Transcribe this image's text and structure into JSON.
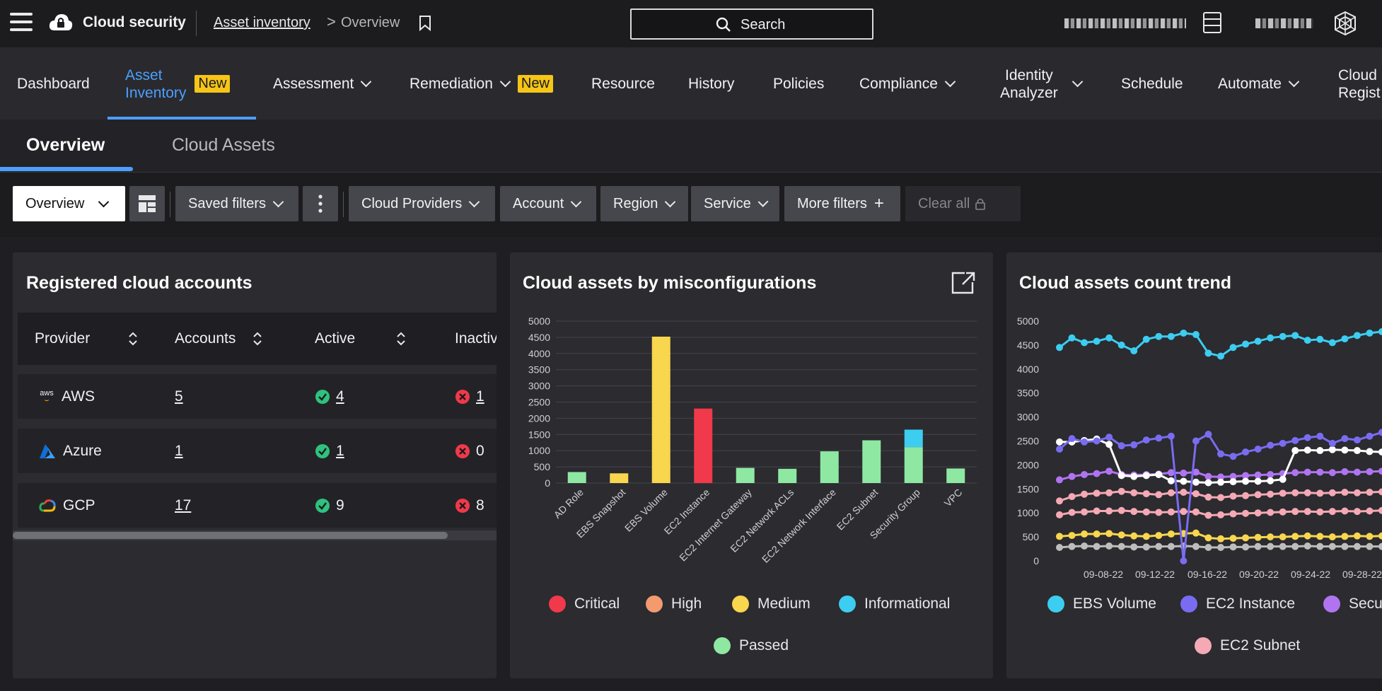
{
  "topbar": {
    "brand": "Cloud security",
    "breadcrumb_link": "Asset inventory",
    "breadcrumb_sep": ">",
    "breadcrumb_current": "Overview",
    "search_label": "Search"
  },
  "nav": {
    "dashboard": "Dashboard",
    "asset_inventory_l1": "Asset",
    "asset_inventory_l2": "Inventory",
    "new_badge": "New",
    "assessment": "Assessment",
    "remediation": "Remediation",
    "resource": "Resource",
    "history": "History",
    "policies": "Policies",
    "compliance": "Compliance",
    "identity_l1": "Identity",
    "identity_l2": "Analyzer",
    "schedule": "Schedule",
    "automate": "Automate",
    "cloud_reg_l1": "Cloud",
    "cloud_reg_l2": "Regist"
  },
  "subtabs": {
    "overview": "Overview",
    "cloud_assets": "Cloud Assets"
  },
  "filters": {
    "view": "Overview",
    "saved_filters": "Saved filters",
    "cloud_providers": "Cloud Providers",
    "account": "Account",
    "region": "Region",
    "service": "Service",
    "more_filters": "More filters",
    "clear_all": "Clear all"
  },
  "accounts_card": {
    "title": "Registered cloud accounts",
    "headers": {
      "provider": "Provider",
      "accounts": "Accounts",
      "active": "Active",
      "inactive": "Inactiv"
    },
    "rows": [
      {
        "provider": "AWS",
        "accounts": "5",
        "active": "4",
        "inactive": "1"
      },
      {
        "provider": "Azure",
        "accounts": "1",
        "active": "1",
        "inactive": "0"
      },
      {
        "provider": "GCP",
        "accounts": "17",
        "active": "9",
        "inactive": "8"
      }
    ],
    "aws_logo_text": "aws"
  },
  "colors": {
    "critical": "#f0394a",
    "high": "#f39a6e",
    "medium": "#f8d64e",
    "informational": "#3ccdf0",
    "passed": "#8ee8a2",
    "ebs_volume": "#3ccdf0",
    "ec2_instance": "#7a6cf0",
    "security_group": "#b074f0",
    "ec2_subnet": "#f4a9b4",
    "white_series": "#ffffff",
    "gray_series": "#bdbdbd",
    "yellow_series": "#f8d64e"
  },
  "misconfig_card": {
    "title": "Cloud assets by misconfigurations",
    "legend": [
      "Critical",
      "High",
      "Medium",
      "Informational",
      "Passed"
    ]
  },
  "trend_card": {
    "title": "Cloud assets count trend",
    "legend": [
      "EBS Volume",
      "EC2 Instance",
      "Secur",
      "EC2 Subnet"
    ]
  },
  "chart_data": [
    {
      "type": "bar",
      "title": "Cloud assets by misconfigurations",
      "categories": [
        "AD Role",
        "EBS Snapshot",
        "EBS Volume",
        "EC2 Instance",
        "EC2 Internet Gateway",
        "EC2 Network ACLs",
        "EC2 Network Interface",
        "EC2 Subnet",
        "Security Group",
        "VPC"
      ],
      "yticks": [
        0,
        500,
        1000,
        1500,
        2000,
        2500,
        3000,
        3500,
        4000,
        4500,
        5000
      ],
      "ylim": [
        0,
        5000
      ],
      "stacked": true,
      "series": [
        {
          "name": "Critical",
          "values": [
            0,
            0,
            0,
            2300,
            0,
            0,
            0,
            0,
            0,
            0
          ]
        },
        {
          "name": "High",
          "values": [
            0,
            0,
            0,
            0,
            0,
            0,
            0,
            0,
            0,
            0
          ]
        },
        {
          "name": "Medium",
          "values": [
            0,
            300,
            4520,
            0,
            0,
            0,
            0,
            0,
            0,
            0
          ]
        },
        {
          "name": "Informational",
          "values": [
            0,
            0,
            0,
            0,
            0,
            0,
            0,
            0,
            540,
            0
          ]
        },
        {
          "name": "Passed",
          "values": [
            340,
            0,
            0,
            0,
            470,
            440,
            980,
            1320,
            1110,
            450
          ]
        }
      ]
    },
    {
      "type": "line",
      "title": "Cloud assets count trend",
      "yticks": [
        0,
        500,
        1000,
        1500,
        2000,
        2500,
        3000,
        3500,
        4000,
        4500,
        5000
      ],
      "ylim": [
        0,
        5000
      ],
      "xticks": [
        "09-08-22",
        "09-12-22",
        "09-16-22",
        "09-20-22",
        "09-24-22",
        "09-28-22"
      ],
      "series": [
        {
          "name": "EBS Volume",
          "values": [
            4450,
            4650,
            4550,
            4580,
            4650,
            4500,
            4380,
            4620,
            4680,
            4680,
            4750,
            4720,
            4330,
            4270,
            4450,
            4520,
            4580,
            4650,
            4680,
            4700,
            4600,
            4620,
            4550,
            4630,
            4700,
            4750,
            4780
          ]
        },
        {
          "name": "EC2 Instance",
          "values": [
            2330,
            2550,
            2480,
            2500,
            2580,
            2400,
            2420,
            2520,
            2560,
            2600,
            0,
            2500,
            2640,
            2230,
            2180,
            2270,
            2330,
            2410,
            2450,
            2510,
            2570,
            2600,
            2450,
            2550,
            2520,
            2600,
            2680
          ]
        },
        {
          "name": "white",
          "values": [
            2480,
            2480,
            2510,
            2540,
            2430,
            1780,
            1760,
            1780,
            1800,
            1670,
            1660,
            1640,
            1630,
            1640,
            1650,
            1660,
            1660,
            1670,
            1700,
            2300,
            2310,
            2300,
            2320,
            2310,
            2300,
            2280,
            2270
          ]
        },
        {
          "name": "Security Group",
          "values": [
            1690,
            1760,
            1800,
            1820,
            1870,
            1800,
            1790,
            1800,
            1810,
            1840,
            1830,
            1850,
            1760,
            1750,
            1760,
            1780,
            1790,
            1800,
            1820,
            1840,
            1850,
            1850,
            1840,
            1860,
            1850,
            1860,
            1870
          ]
        },
        {
          "name": "EC2 Subnet",
          "values": [
            1250,
            1340,
            1390,
            1410,
            1420,
            1450,
            1420,
            1400,
            1380,
            1420,
            1430,
            1400,
            1330,
            1320,
            1350,
            1360,
            1380,
            1390,
            1410,
            1420,
            1420,
            1410,
            1420,
            1430,
            1420,
            1430,
            1440
          ]
        },
        {
          "name": "pink2",
          "values": [
            960,
            1010,
            1020,
            1040,
            1040,
            1050,
            1030,
            1020,
            1010,
            1020,
            1030,
            1020,
            950,
            960,
            980,
            990,
            1000,
            1010,
            1020,
            1030,
            1030,
            1020,
            1030,
            1040,
            1030,
            1040,
            1050
          ]
        },
        {
          "name": "yellow",
          "values": [
            510,
            530,
            560,
            560,
            570,
            540,
            520,
            510,
            530,
            560,
            570,
            580,
            480,
            460,
            470,
            480,
            490,
            500,
            500,
            510,
            520,
            510,
            500,
            510,
            520,
            510,
            520
          ]
        },
        {
          "name": "gray",
          "values": [
            280,
            300,
            310,
            300,
            310,
            300,
            290,
            290,
            300,
            300,
            310,
            300,
            280,
            280,
            290,
            290,
            300,
            300,
            300,
            300,
            310,
            300,
            300,
            300,
            300,
            300,
            300
          ]
        }
      ]
    }
  ]
}
